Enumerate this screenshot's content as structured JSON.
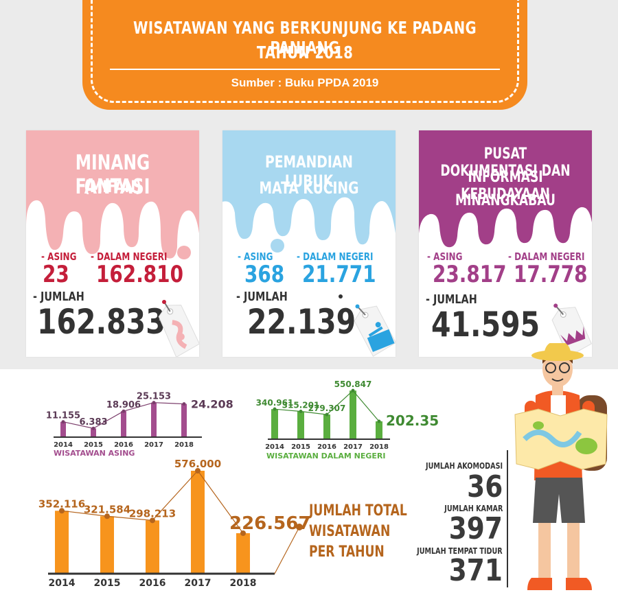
{
  "banner": {
    "title_line1": "WISATAWAN YANG BERKUNJUNG KE PADANG PANJANG",
    "title_line2": "TAHUN 2018",
    "source": "Sumber : Buku PPDA 2019"
  },
  "cards": [
    {
      "title_line1": "MINANG FANTASI",
      "title_line2": "(MIFAN)",
      "title_line3": "",
      "asing_label": "- ASING",
      "asing_value": "23",
      "dn_label": "- DALAM NEGERI",
      "dn_value": "162.810",
      "jumlah_label": "- JUMLAH",
      "jumlah_value": "162.833",
      "color": "#f4b1b4",
      "value_color": "#c41e3a"
    },
    {
      "title_line1": "PEMANDIAN LUBUK",
      "title_line2": "MATA KUCING",
      "title_line3": "",
      "asing_label": "- ASING",
      "asing_value": "368",
      "dn_label": "- DALAM NEGERI",
      "dn_value": "21.771",
      "jumlah_label": "- JUMLAH",
      "jumlah_value": "22.139",
      "color": "#a8d8f0",
      "value_color": "#2aa3e0"
    },
    {
      "title_line1": "PUSAT DOKUMENTASI DAN",
      "title_line2": "INFORMASI KEBUDAYAAN",
      "title_line3": "MINANGKABAU",
      "asing_label": "- ASING",
      "asing_value": "23.817",
      "dn_label": "- DALAM NEGERI",
      "dn_value": "17.778",
      "jumlah_label": "- JUMLAH",
      "jumlah_value": "41.595",
      "color": "#a23f88",
      "value_color": "#a23f88"
    }
  ],
  "chart_data": [
    {
      "type": "bar",
      "categories": [
        "2014",
        "2015",
        "2016",
        "2017",
        "2018"
      ],
      "values": [
        11155,
        6383,
        18906,
        25153,
        24208
      ],
      "value_labels": [
        "11.155",
        "6.383",
        "18.906",
        "25.153",
        "24.208"
      ],
      "xlabel": "WISATAWAN ASING",
      "color": "#a34d8e"
    },
    {
      "type": "bar",
      "categories": [
        "2014",
        "2015",
        "2016",
        "2017",
        "2018"
      ],
      "values": [
        340961,
        315201,
        279307,
        550847,
        202359
      ],
      "value_labels": [
        "340.961",
        "315.201",
        "279.307",
        "550.847",
        "202.359"
      ],
      "xlabel": "WISATAWAN DALAM NEGERI",
      "color": "#5aae3f"
    },
    {
      "type": "bar",
      "categories": [
        "2014",
        "2015",
        "2016",
        "2017",
        "2018"
      ],
      "values": [
        352116,
        321584,
        298213,
        576000,
        226567
      ],
      "value_labels": [
        "352.116",
        "321.584",
        "298.213",
        "576.000",
        "226.567"
      ],
      "title_line1": "JUMLAH TOTAL",
      "title_line2": "WISATAWAN",
      "title_line3": "PER TAHUN",
      "color": "#f7941d"
    }
  ],
  "accommodation": {
    "akomodasi_label": "JUMLAH AKOMODASI",
    "akomodasi_value": "36",
    "kamar_label": "JUMLAH KAMAR",
    "kamar_value": "397",
    "tempat_tidur_label": "JUMLAH TEMPAT TIDUR",
    "tempat_tidur_value": "371"
  },
  "icons": {
    "card1": "tag-waterslide-icon",
    "card2": "tag-swimmer-icon",
    "card3": "tag-rumah-gadang-icon",
    "traveler": "tourist-with-map-illustration"
  }
}
